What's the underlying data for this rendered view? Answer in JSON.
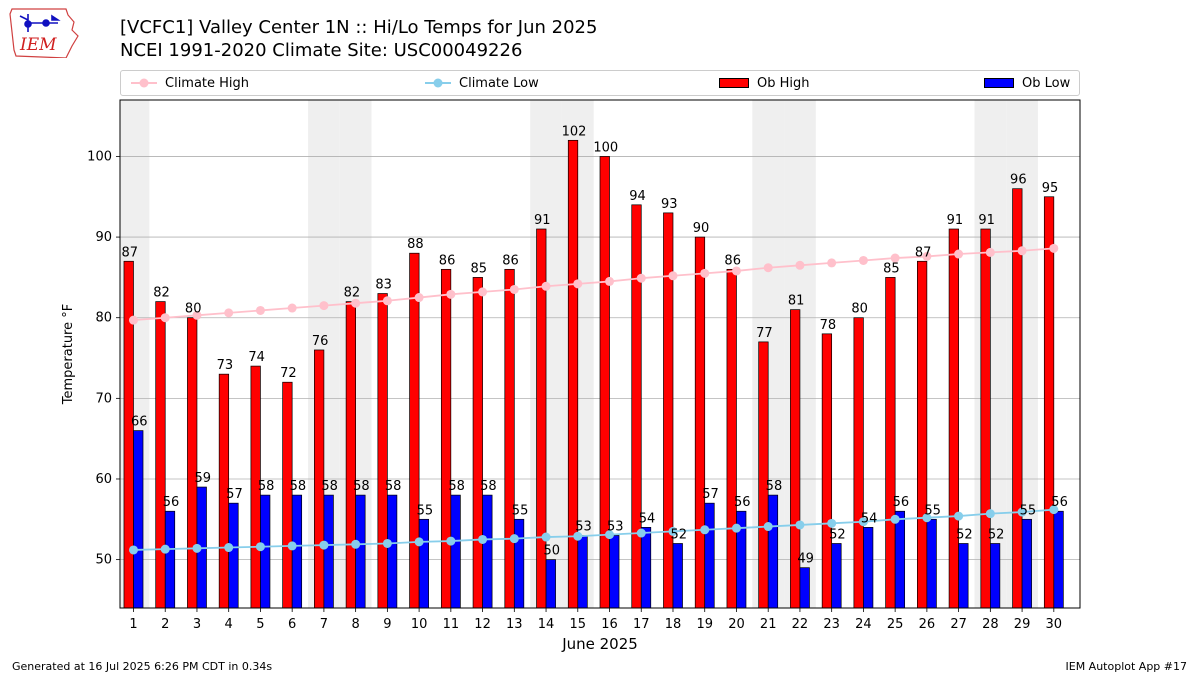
{
  "logo": {
    "text": "IEM"
  },
  "header": {
    "title_line1": "[VCFC1] Valley Center 1N :: Hi/Lo Temps for Jun 2025",
    "title_line2": "NCEI 1991-2020 Climate Site: USC00049226"
  },
  "legend": {
    "climate_high": "Climate High",
    "climate_low": "Climate Low",
    "ob_high": "Ob High",
    "ob_low": "Ob Low"
  },
  "colors": {
    "ob_high": "#ff0000",
    "ob_low": "#0000ff",
    "climate_high": "#ffc0cb",
    "climate_low": "#87ceeb",
    "weekend_band": "#efefef",
    "grid": "#b0b0b0"
  },
  "footer": {
    "left": "Generated at 16 Jul 2025 6:26 PM CDT in 0.34s",
    "right": "IEM Autoplot App #17"
  },
  "chart_data": {
    "type": "bar",
    "xlabel": "June 2025",
    "ylabel": "Temperature °F",
    "ylim": [
      44,
      107
    ],
    "yticks": [
      50,
      60,
      70,
      80,
      90,
      100
    ],
    "grid": true,
    "legend_position": "top",
    "categories": [
      "1",
      "2",
      "3",
      "4",
      "5",
      "6",
      "7",
      "8",
      "9",
      "10",
      "11",
      "12",
      "13",
      "14",
      "15",
      "16",
      "17",
      "18",
      "19",
      "20",
      "21",
      "22",
      "23",
      "24",
      "25",
      "26",
      "27",
      "28",
      "29",
      "30"
    ],
    "weekend_days": [
      1,
      7,
      8,
      14,
      15,
      21,
      22,
      28,
      29
    ],
    "series": [
      {
        "name": "Ob High",
        "type": "bar",
        "values": [
          87,
          82,
          80,
          73,
          74,
          72,
          76,
          82,
          83,
          88,
          86,
          85,
          86,
          91,
          102,
          100,
          94,
          93,
          90,
          86,
          77,
          81,
          78,
          80,
          85,
          87,
          91,
          91,
          96,
          95
        ]
      },
      {
        "name": "Ob Low",
        "type": "bar",
        "values": [
          66,
          56,
          59,
          57,
          58,
          58,
          58,
          58,
          58,
          55,
          58,
          58,
          55,
          50,
          53,
          53,
          54,
          52,
          57,
          56,
          58,
          49,
          52,
          54,
          56,
          55,
          52,
          52,
          55,
          56
        ]
      },
      {
        "name": "Climate High",
        "type": "line",
        "values": [
          79.7,
          80.0,
          80.3,
          80.6,
          80.9,
          81.2,
          81.5,
          81.8,
          82.1,
          82.5,
          82.9,
          83.2,
          83.5,
          83.9,
          84.2,
          84.5,
          84.9,
          85.2,
          85.5,
          85.8,
          86.2,
          86.5,
          86.8,
          87.1,
          87.4,
          87.6,
          87.9,
          88.1,
          88.3,
          88.6
        ]
      },
      {
        "name": "Climate Low",
        "type": "line",
        "values": [
          51.2,
          51.3,
          51.4,
          51.5,
          51.6,
          51.7,
          51.8,
          51.9,
          52.0,
          52.2,
          52.3,
          52.5,
          52.6,
          52.8,
          52.9,
          53.1,
          53.3,
          53.5,
          53.7,
          53.9,
          54.1,
          54.3,
          54.5,
          54.7,
          55.0,
          55.2,
          55.4,
          55.7,
          55.9,
          56.2
        ]
      }
    ]
  }
}
